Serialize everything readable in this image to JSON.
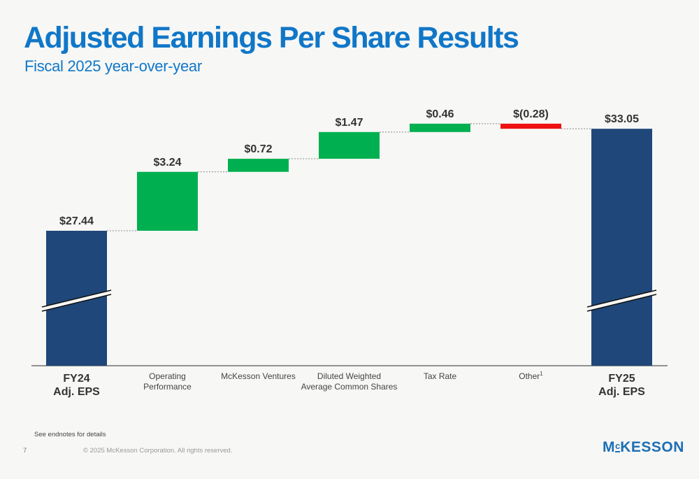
{
  "title": "Adjusted Earnings Per Share Results",
  "subtitle": "Fiscal 2025 year-over-year",
  "footnote": "See endnotes for details",
  "page_number": "7",
  "copyright": "© 2025 McKesson Corporation. All rights reserved.",
  "logo": {
    "m": "M",
    "c": "c",
    "rest": "KESSON"
  },
  "colors": {
    "total": "#1f477a",
    "increase": "#00b050",
    "decrease": "#ee1111",
    "accent": "#1077c8"
  },
  "chart_data": {
    "type": "bar",
    "subtype": "waterfall",
    "axis_break_on_totals": true,
    "categories": [
      {
        "lines": [
          "FY24",
          "Adj. EPS"
        ],
        "bold": true
      },
      {
        "lines": [
          "Operating",
          "Performance"
        ]
      },
      {
        "lines": [
          "McKesson Ventures"
        ]
      },
      {
        "lines": [
          "Diluted Weighted",
          "Average Common Shares"
        ]
      },
      {
        "lines": [
          "Tax Rate"
        ]
      },
      {
        "lines": [
          "Other"
        ],
        "superscript": "1"
      },
      {
        "lines": [
          "FY25",
          "Adj. EPS"
        ],
        "bold": true
      }
    ],
    "bars": [
      {
        "kind": "total",
        "value": 27.44,
        "label": "$27.44"
      },
      {
        "kind": "increase",
        "value": 3.24,
        "label": "$3.24"
      },
      {
        "kind": "increase",
        "value": 0.72,
        "label": "$0.72"
      },
      {
        "kind": "increase",
        "value": 1.47,
        "label": "$1.47"
      },
      {
        "kind": "increase",
        "value": 0.46,
        "label": "$0.46"
      },
      {
        "kind": "decrease",
        "value": -0.28,
        "label": "$(0.28)"
      },
      {
        "kind": "total",
        "value": 33.05,
        "label": "$33.05"
      }
    ]
  }
}
